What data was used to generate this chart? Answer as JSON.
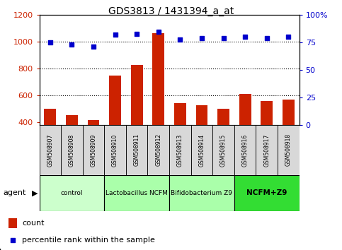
{
  "title": "GDS3813 / 1431394_a_at",
  "samples": [
    "GSM508907",
    "GSM508908",
    "GSM508909",
    "GSM508910",
    "GSM508911",
    "GSM508912",
    "GSM508913",
    "GSM508914",
    "GSM508915",
    "GSM508916",
    "GSM508917",
    "GSM508918"
  ],
  "counts": [
    500,
    455,
    415,
    750,
    830,
    1065,
    545,
    530,
    500,
    610,
    560,
    570
  ],
  "percentiles": [
    75,
    73,
    71,
    82,
    83,
    85,
    78,
    79,
    79,
    80,
    79,
    80
  ],
  "bar_color": "#cc2200",
  "dot_color": "#0000cc",
  "ylim_left": [
    380,
    1200
  ],
  "ylim_right": [
    0,
    100
  ],
  "yticks_left": [
    400,
    600,
    800,
    1000,
    1200
  ],
  "yticks_right": [
    0,
    25,
    50,
    75,
    100
  ],
  "grid_values": [
    600,
    800,
    1000
  ],
  "groups": [
    {
      "label": "control",
      "start": 0,
      "end": 2,
      "color": "#ccffcc",
      "bold": false
    },
    {
      "label": "Lactobacillus NCFM",
      "start": 3,
      "end": 5,
      "color": "#aaffaa",
      "bold": false
    },
    {
      "label": "Bifidobacterium Z9",
      "start": 6,
      "end": 8,
      "color": "#aaffaa",
      "bold": false
    },
    {
      "label": "NCFM+Z9",
      "start": 9,
      "end": 11,
      "color": "#33dd33",
      "bold": true
    }
  ],
  "sample_box_color": "#d8d8d8",
  "agent_label": "agent",
  "legend_count": "count",
  "legend_percentile": "percentile rank within the sample"
}
